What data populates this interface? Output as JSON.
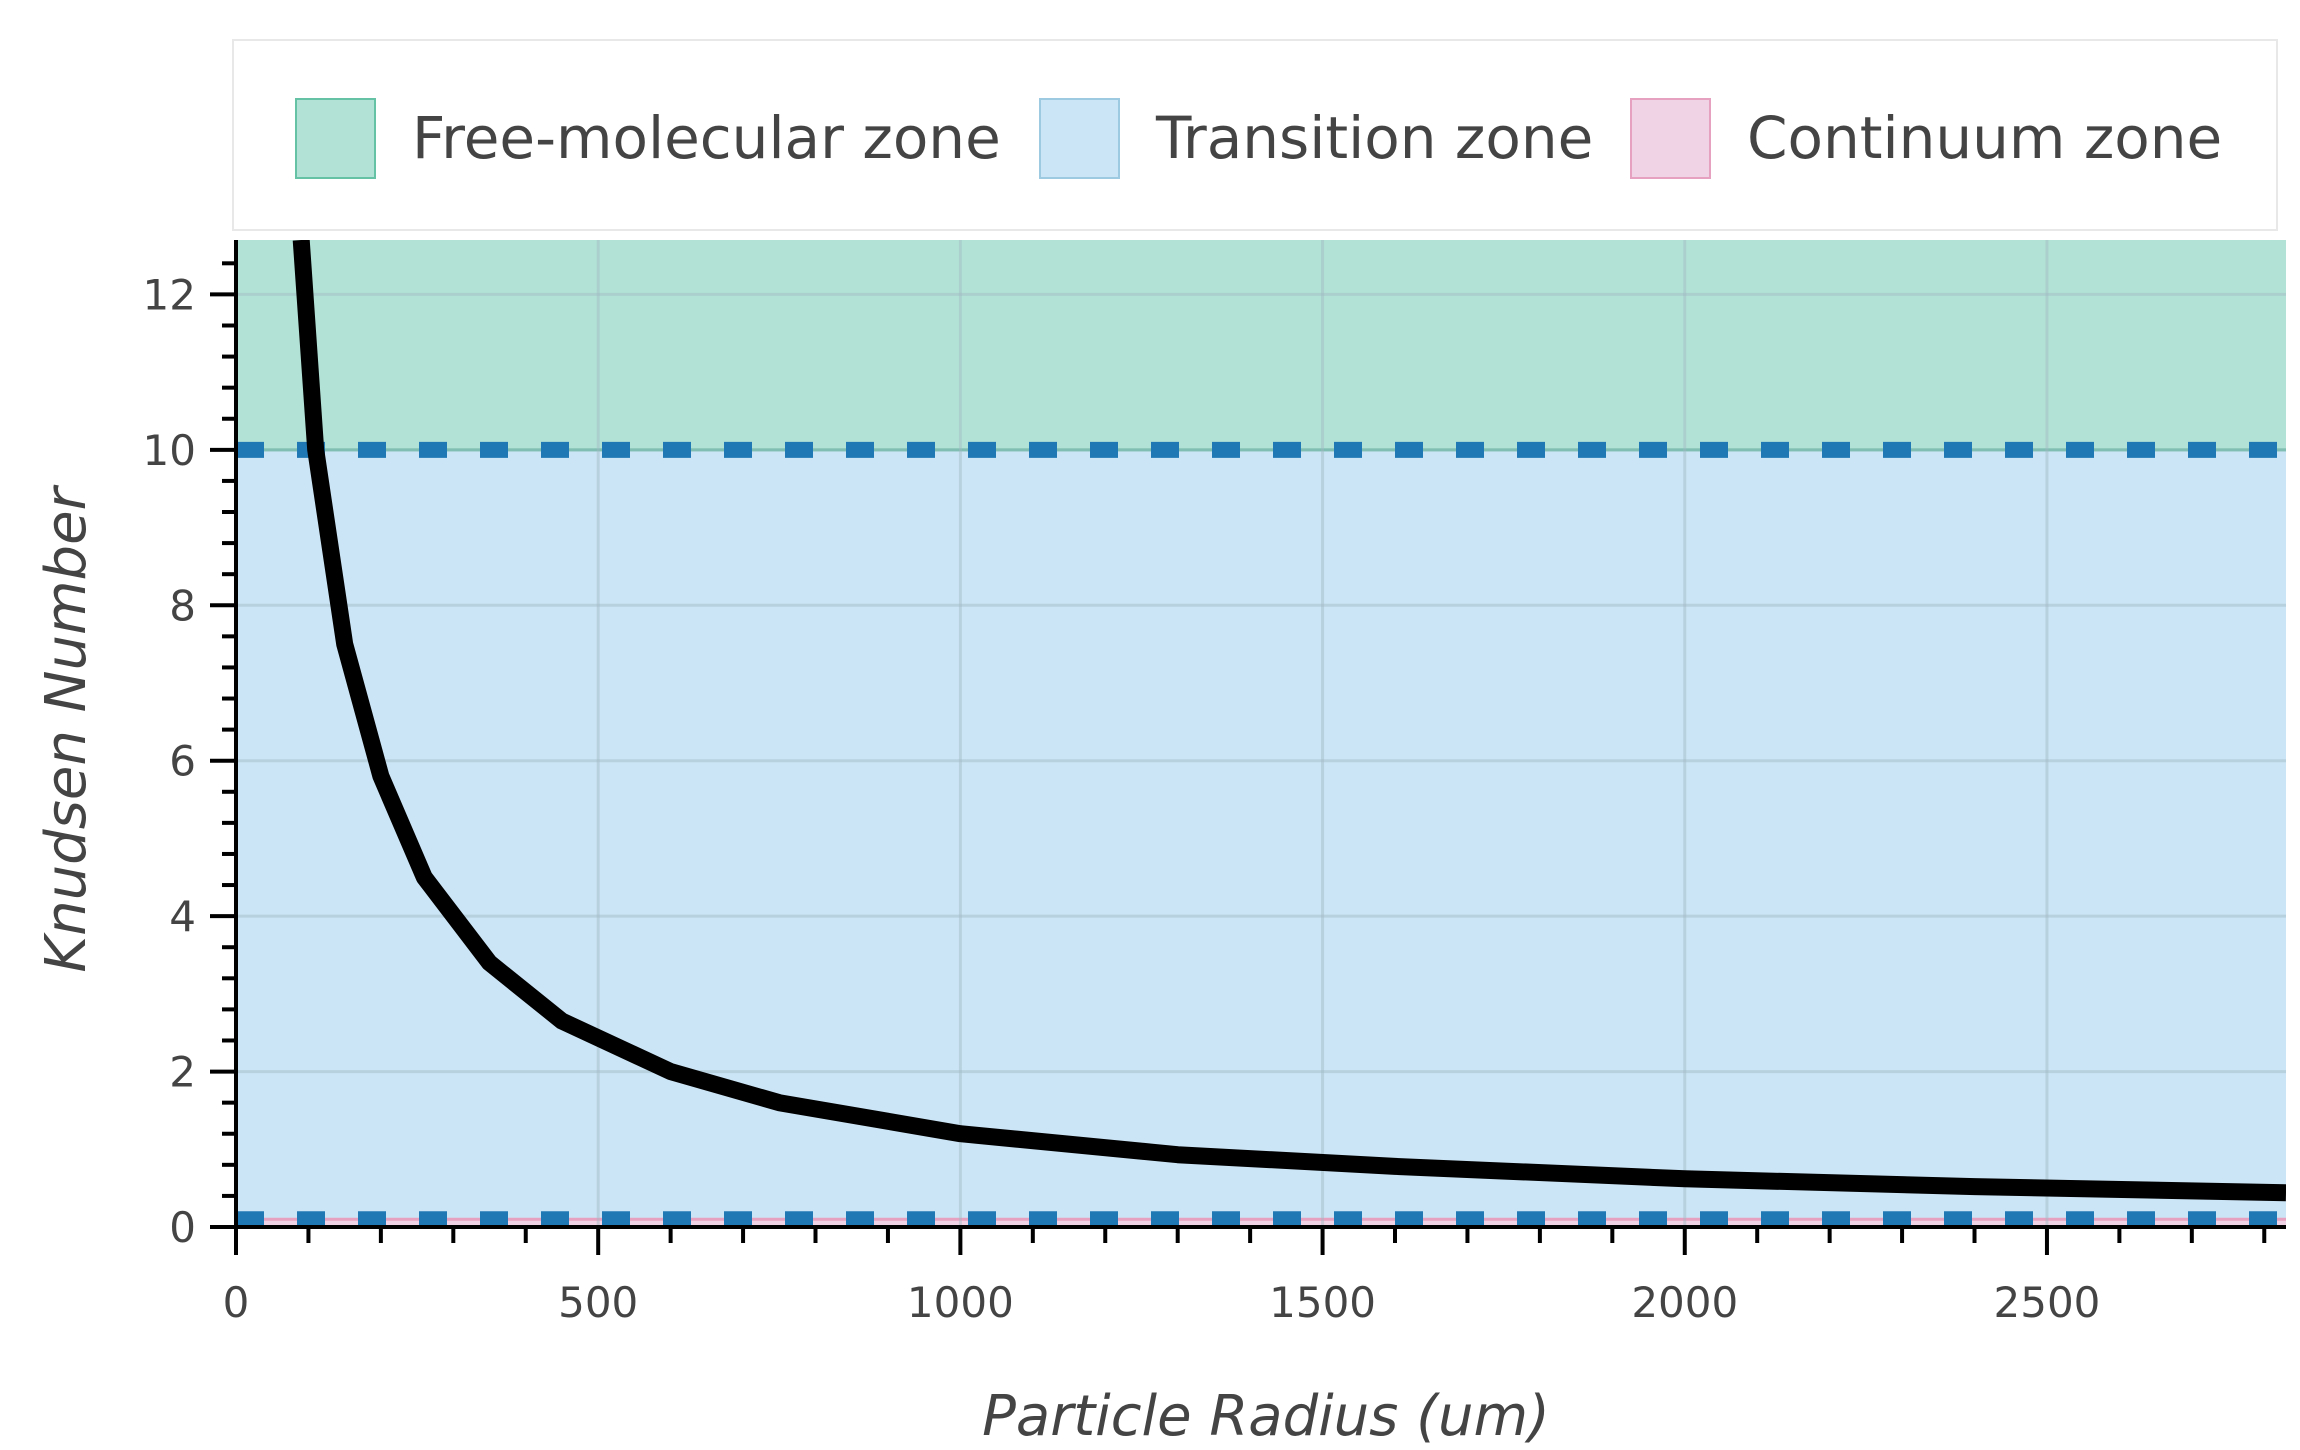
{
  "chart_data": {
    "type": "line",
    "title": "",
    "xlabel": "Particle Radius (um)",
    "ylabel": "Knudsen Number",
    "xlim": [
      0,
      2830
    ],
    "ylim": [
      0,
      12.7
    ],
    "grid": true,
    "legend_position": "top",
    "x_ticks": [
      0,
      500,
      1000,
      1500,
      2000,
      2500
    ],
    "x_tick_labels": [
      "0",
      "500",
      "1000",
      "1500",
      "2000",
      "2500"
    ],
    "y_ticks": [
      0,
      2,
      4,
      6,
      8,
      10,
      12
    ],
    "y_tick_labels": [
      "0",
      "2",
      "4",
      "6",
      "8",
      "10",
      "12"
    ],
    "zones": [
      {
        "name": "Free-molecular zone",
        "label": "Free-molecular zone",
        "y_from": 10,
        "y_to": 12.7,
        "color": "#b2e2d6",
        "border": "#66c2a4"
      },
      {
        "name": "Transition zone",
        "label": "Transition zone",
        "y_from": 0.1,
        "y_to": 10,
        "color": "#cce5f6",
        "border": "#9ecae1"
      },
      {
        "name": "Continuum zone",
        "label": "Continuum zone",
        "y_from": 0,
        "y_to": 0.1,
        "color": "#f0d3e4",
        "border": "#e7a1c0"
      }
    ],
    "reference_lines": [
      {
        "name": "free-molecular-boundary",
        "y": 10,
        "color": "#1f78b4",
        "style": "dashed"
      },
      {
        "name": "continuum-boundary",
        "y": 0.1,
        "color": "#1f78b4",
        "style": "dashed"
      }
    ],
    "series": [
      {
        "name": "Knudsen number",
        "color": "#000000",
        "x": [
          90,
          110,
          150,
          200,
          260,
          350,
          450,
          600,
          750,
          1000,
          1300,
          1600,
          2000,
          2400,
          2830
        ],
        "y": [
          12.7,
          10.0,
          7.5,
          5.8,
          4.5,
          3.4,
          2.65,
          2.0,
          1.6,
          1.2,
          0.93,
          0.78,
          0.62,
          0.52,
          0.44
        ]
      }
    ]
  }
}
